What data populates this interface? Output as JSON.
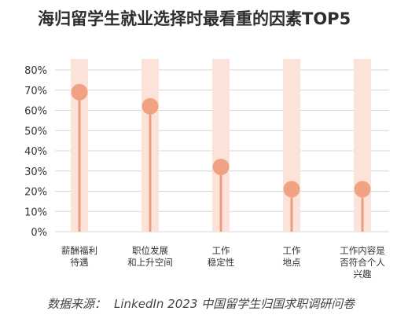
{
  "chart_data": {
    "type": "lollipop",
    "title": "海归留学生就业选择时最看重的因素TOP5",
    "categories": [
      [
        "薪酬福利",
        "待遇"
      ],
      [
        "职位发展",
        "和上升空间"
      ],
      [
        "工作",
        "稳定性"
      ],
      [
        "工作",
        "地点"
      ],
      [
        "工作内容是",
        "否符合个人",
        "兴趣"
      ]
    ],
    "values": [
      69,
      62,
      32,
      21,
      21
    ],
    "ylim": [
      0,
      80
    ],
    "yticks": [
      0,
      10,
      20,
      30,
      40,
      50,
      60,
      70,
      80
    ],
    "tick_suffix": "%",
    "grid": true,
    "colors": {
      "marker": "#F0A283",
      "stem": "#EC9F80",
      "band": "#FBE3D9",
      "grid": "#D6D6D6",
      "tick_text": "#333333"
    }
  },
  "source": {
    "label": "数据来源：",
    "value": "LinkedIn 2023 中国留学生归国求职调研问卷"
  }
}
